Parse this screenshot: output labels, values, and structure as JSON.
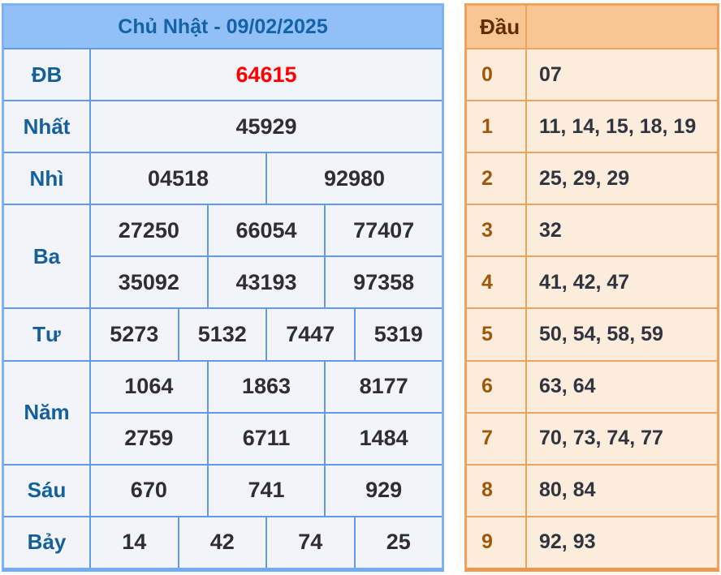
{
  "left_table": {
    "title": "Chủ Nhật - 09/02/2025",
    "rows": [
      {
        "label": "ĐB",
        "groups": [
          [
            "64615"
          ]
        ]
      },
      {
        "label": "Nhất",
        "groups": [
          [
            "45929"
          ]
        ]
      },
      {
        "label": "Nhì",
        "groups": [
          [
            "04518",
            "92980"
          ]
        ]
      },
      {
        "label": "Ba",
        "groups": [
          [
            "27250",
            "66054",
            "77407"
          ],
          [
            "35092",
            "43193",
            "97358"
          ]
        ]
      },
      {
        "label": "Tư",
        "groups": [
          [
            "5273",
            "5132",
            "7447",
            "5319"
          ]
        ]
      },
      {
        "label": "Năm",
        "groups": [
          [
            "1064",
            "1863",
            "8177"
          ],
          [
            "2759",
            "6711",
            "1484"
          ]
        ]
      },
      {
        "label": "Sáu",
        "groups": [
          [
            "670",
            "741",
            "929"
          ]
        ]
      },
      {
        "label": "Bảy",
        "groups": [
          [
            "14",
            "42",
            "74",
            "25"
          ]
        ]
      }
    ]
  },
  "right_table": {
    "header": "Đầu",
    "rows": [
      {
        "digit": "0",
        "values": "07"
      },
      {
        "digit": "1",
        "values": "11, 14, 15, 18, 19"
      },
      {
        "digit": "2",
        "values": "25, 29, 29"
      },
      {
        "digit": "3",
        "values": "32"
      },
      {
        "digit": "4",
        "values": "41, 42, 47"
      },
      {
        "digit": "5",
        "values": "50, 54, 58, 59"
      },
      {
        "digit": "6",
        "values": "63, 64"
      },
      {
        "digit": "7",
        "values": "70, 73, 74, 77"
      },
      {
        "digit": "8",
        "values": "80, 84"
      },
      {
        "digit": "9",
        "values": "92, 93"
      }
    ]
  },
  "colors": {
    "special_prize_red": "#fe0000",
    "blue_header_bg": "#93bff7",
    "blue_accent_text": "#1263a8",
    "blue_border": "#80b1f5",
    "orange_border": "#f0a25c",
    "orange_header_bg": "#f8c693",
    "orange_digit_text": "#a05708",
    "peach_row_bg": "#fcecdb"
  }
}
